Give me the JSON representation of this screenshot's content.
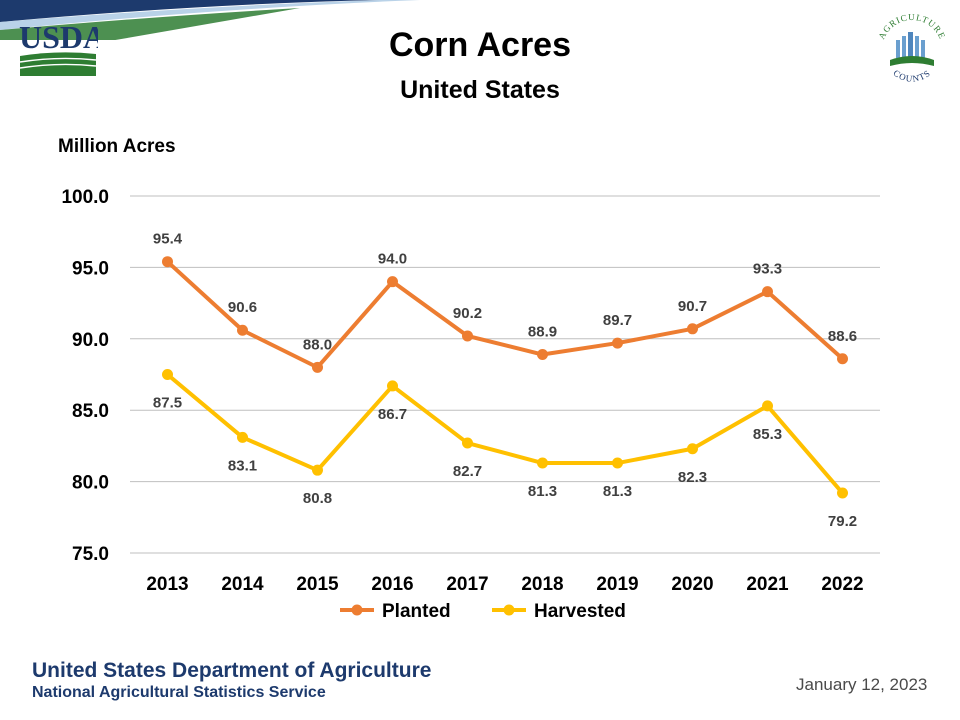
{
  "slide": {
    "title": "Corn Acres",
    "subtitle": "United States",
    "footer_agency": "United States Department of Agriculture",
    "footer_service": "National Agricultural Statistics Service",
    "date": "January 12, 2023"
  },
  "logos": {
    "left_text": "USDA",
    "right_text_top": "AGRICULTURE",
    "right_text_bottom": "COUNTS"
  },
  "colors": {
    "planted": "#ED7D31",
    "harvested": "#FFC000",
    "usda_blue": "#1d3a6d",
    "usda_green": "#2e7d32"
  },
  "chart_data": {
    "type": "line",
    "title": "Corn Acres",
    "subtitle": "United States",
    "ylabel": "Million Acres",
    "xlabel": "",
    "ylim": [
      75,
      100
    ],
    "yticks": [
      "100.0",
      "95.0",
      "90.0",
      "85.0",
      "80.0",
      "75.0"
    ],
    "categories": [
      "2013",
      "2014",
      "2015",
      "2016",
      "2017",
      "2018",
      "2019",
      "2020",
      "2021",
      "2022"
    ],
    "series": [
      {
        "name": "Planted",
        "values": [
          95.4,
          90.6,
          88.0,
          94.0,
          90.2,
          88.9,
          89.7,
          90.7,
          93.3,
          88.6
        ],
        "labels": [
          "95.4",
          "90.6",
          "88.0",
          "94.0",
          "90.2",
          "88.9",
          "89.7",
          "90.7",
          "93.3",
          "88.6"
        ]
      },
      {
        "name": "Harvested",
        "values": [
          87.5,
          83.1,
          80.8,
          86.7,
          82.7,
          81.3,
          81.3,
          82.3,
          85.3,
          79.2
        ],
        "labels": [
          "87.5",
          "83.1",
          "80.8",
          "86.7",
          "82.7",
          "81.3",
          "81.3",
          "82.3",
          "85.3",
          "79.2"
        ]
      }
    ],
    "grid": true,
    "legend": "bottom"
  }
}
